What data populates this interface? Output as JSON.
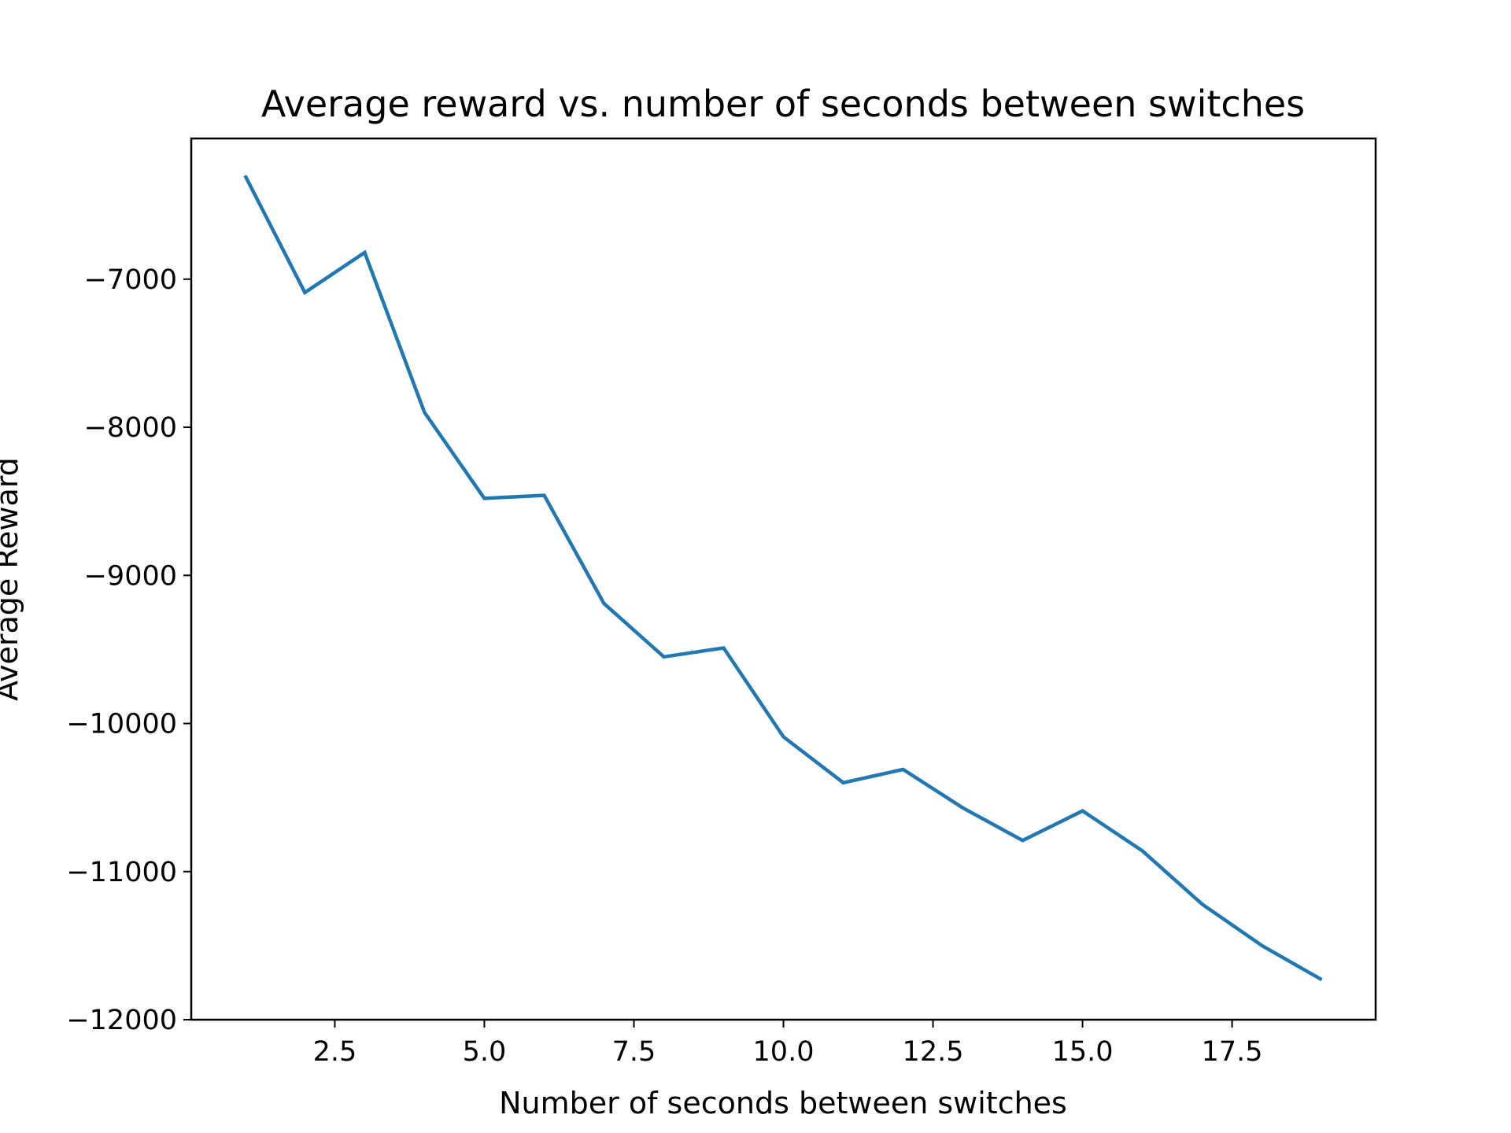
{
  "chart_data": {
    "type": "line",
    "title": "Average reward vs. number of seconds between switches",
    "xlabel": "Number of seconds between switches",
    "ylabel": "Average Reward",
    "xlim": [
      0.1,
      19.9
    ],
    "ylim": [
      -12000,
      -6050
    ],
    "xticks": [
      2.5,
      5.0,
      7.5,
      10.0,
      12.5,
      15.0,
      17.5
    ],
    "xtick_labels": [
      "2.5",
      "5.0",
      "7.5",
      "10.0",
      "12.5",
      "15.0",
      "17.5"
    ],
    "yticks": [
      -7000,
      -8000,
      -9000,
      -10000,
      -11000,
      -12000
    ],
    "ytick_labels": [
      "−7000",
      "−8000",
      "−9000",
      "−10000",
      "−11000",
      "−12000"
    ],
    "grid": false,
    "series": [
      {
        "color": "#1f77b4",
        "x": [
          1,
          2,
          3,
          4,
          5,
          6,
          7,
          8,
          9,
          10,
          11,
          12,
          13,
          14,
          15,
          16,
          17,
          18,
          19
        ],
        "y": [
          -6300,
          -7090,
          -6820,
          -7900,
          -8480,
          -8460,
          -9190,
          -9550,
          -9490,
          -10090,
          -10400,
          -10310,
          -10570,
          -10790,
          -10590,
          -10860,
          -11220,
          -11500,
          -11730
        ]
      }
    ]
  }
}
